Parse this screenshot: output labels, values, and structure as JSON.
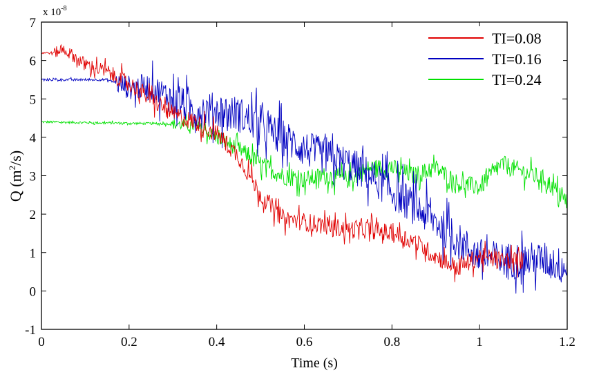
{
  "chart_data": {
    "type": "line",
    "title": "",
    "xlabel": "Time (s)",
    "ylabel_main": "Q (m",
    "ylabel_sup": "2",
    "ylabel_tail": "/s)",
    "y_multiplier_base": "x 10",
    "y_multiplier_exp": "-8",
    "xlim": [
      0,
      1.2
    ],
    "ylim": [
      -1,
      7
    ],
    "xticks": [
      0,
      0.2,
      0.4,
      0.6,
      0.8,
      1,
      1.2
    ],
    "xtick_labels": [
      "0",
      "0.2",
      "0.4",
      "0.6",
      "0.8",
      "1",
      "1.2"
    ],
    "yticks": [
      -1,
      0,
      1,
      2,
      3,
      4,
      5,
      6,
      7
    ],
    "ytick_labels": [
      "-1",
      "0",
      "1",
      "2",
      "3",
      "4",
      "5",
      "6",
      "7"
    ],
    "grid": false,
    "legend_position": "top-right",
    "series": [
      {
        "name": "TI=0.08",
        "color": "#e00000",
        "x": [
          0,
          0.03,
          0.05,
          0.1,
          0.15,
          0.2,
          0.25,
          0.3,
          0.35,
          0.4,
          0.45,
          0.5,
          0.55,
          0.6,
          0.65,
          0.7,
          0.75,
          0.8,
          0.85,
          0.9,
          0.95,
          1.0,
          1.05,
          1.1
        ],
        "y": [
          6.2,
          6.2,
          6.3,
          5.9,
          5.7,
          5.4,
          5.0,
          4.6,
          4.4,
          4.1,
          3.5,
          2.5,
          1.9,
          1.8,
          1.7,
          1.6,
          1.6,
          1.5,
          1.3,
          0.9,
          0.6,
          0.9,
          0.8,
          0.8
        ],
        "noise_start": 0.03,
        "noise": 0.3
      },
      {
        "name": "TI=0.16",
        "color": "#0000c0",
        "x": [
          0,
          0.15,
          0.2,
          0.25,
          0.3,
          0.35,
          0.4,
          0.45,
          0.5,
          0.55,
          0.6,
          0.65,
          0.7,
          0.75,
          0.8,
          0.85,
          0.9,
          0.95,
          1.0,
          1.05,
          1.1,
          1.15,
          1.2
        ],
        "y": [
          5.5,
          5.5,
          5.3,
          5.3,
          5.0,
          4.7,
          4.7,
          4.6,
          4.3,
          4.0,
          3.7,
          3.5,
          3.3,
          3.0,
          2.6,
          2.2,
          1.8,
          1.3,
          0.9,
          0.8,
          0.8,
          0.8,
          0.6
        ],
        "noise_start": 0.17,
        "noise": 0.6
      },
      {
        "name": "TI=0.24",
        "color": "#00e000",
        "x": [
          0,
          0.3,
          0.35,
          0.4,
          0.45,
          0.5,
          0.55,
          0.6,
          0.65,
          0.7,
          0.75,
          0.8,
          0.85,
          0.9,
          0.95,
          1.0,
          1.05,
          1.1,
          1.15,
          1.2
        ],
        "y": [
          4.4,
          4.35,
          4.3,
          4.0,
          3.7,
          3.3,
          3.0,
          2.9,
          3.0,
          2.9,
          3.2,
          3.2,
          3.0,
          3.2,
          2.8,
          2.7,
          3.3,
          3.1,
          2.9,
          2.3
        ],
        "noise_start": 0.3,
        "noise": 0.3
      }
    ]
  }
}
